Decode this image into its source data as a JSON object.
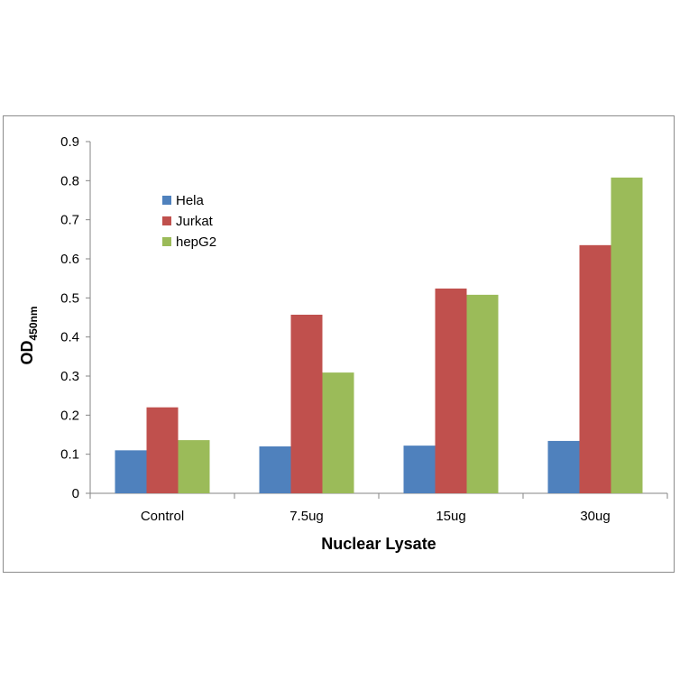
{
  "chart_data": {
    "type": "bar",
    "title": "",
    "xlabel": "Nuclear Lysate",
    "ylabel": "OD",
    "ylabel_subscript": "450nm",
    "categories": [
      "Control",
      "7.5ug",
      "15ug",
      "30ug"
    ],
    "series": [
      {
        "name": "Hela",
        "color": "#4f81bd",
        "values": [
          0.11,
          0.12,
          0.122,
          0.134
        ]
      },
      {
        "name": "Jurkat",
        "color": "#c0504d",
        "values": [
          0.22,
          0.457,
          0.524,
          0.635
        ]
      },
      {
        "name": "hepG2",
        "color": "#9bbb59",
        "values": [
          0.136,
          0.309,
          0.508,
          0.808
        ]
      }
    ],
    "ylim": [
      0,
      0.9
    ],
    "yticks": [
      "0",
      "0.1",
      "0.2",
      "0.3",
      "0.4",
      "0.5",
      "0.6",
      "0.7",
      "0.8",
      "0.9"
    ],
    "grid": false,
    "legend_position": "top-left"
  }
}
